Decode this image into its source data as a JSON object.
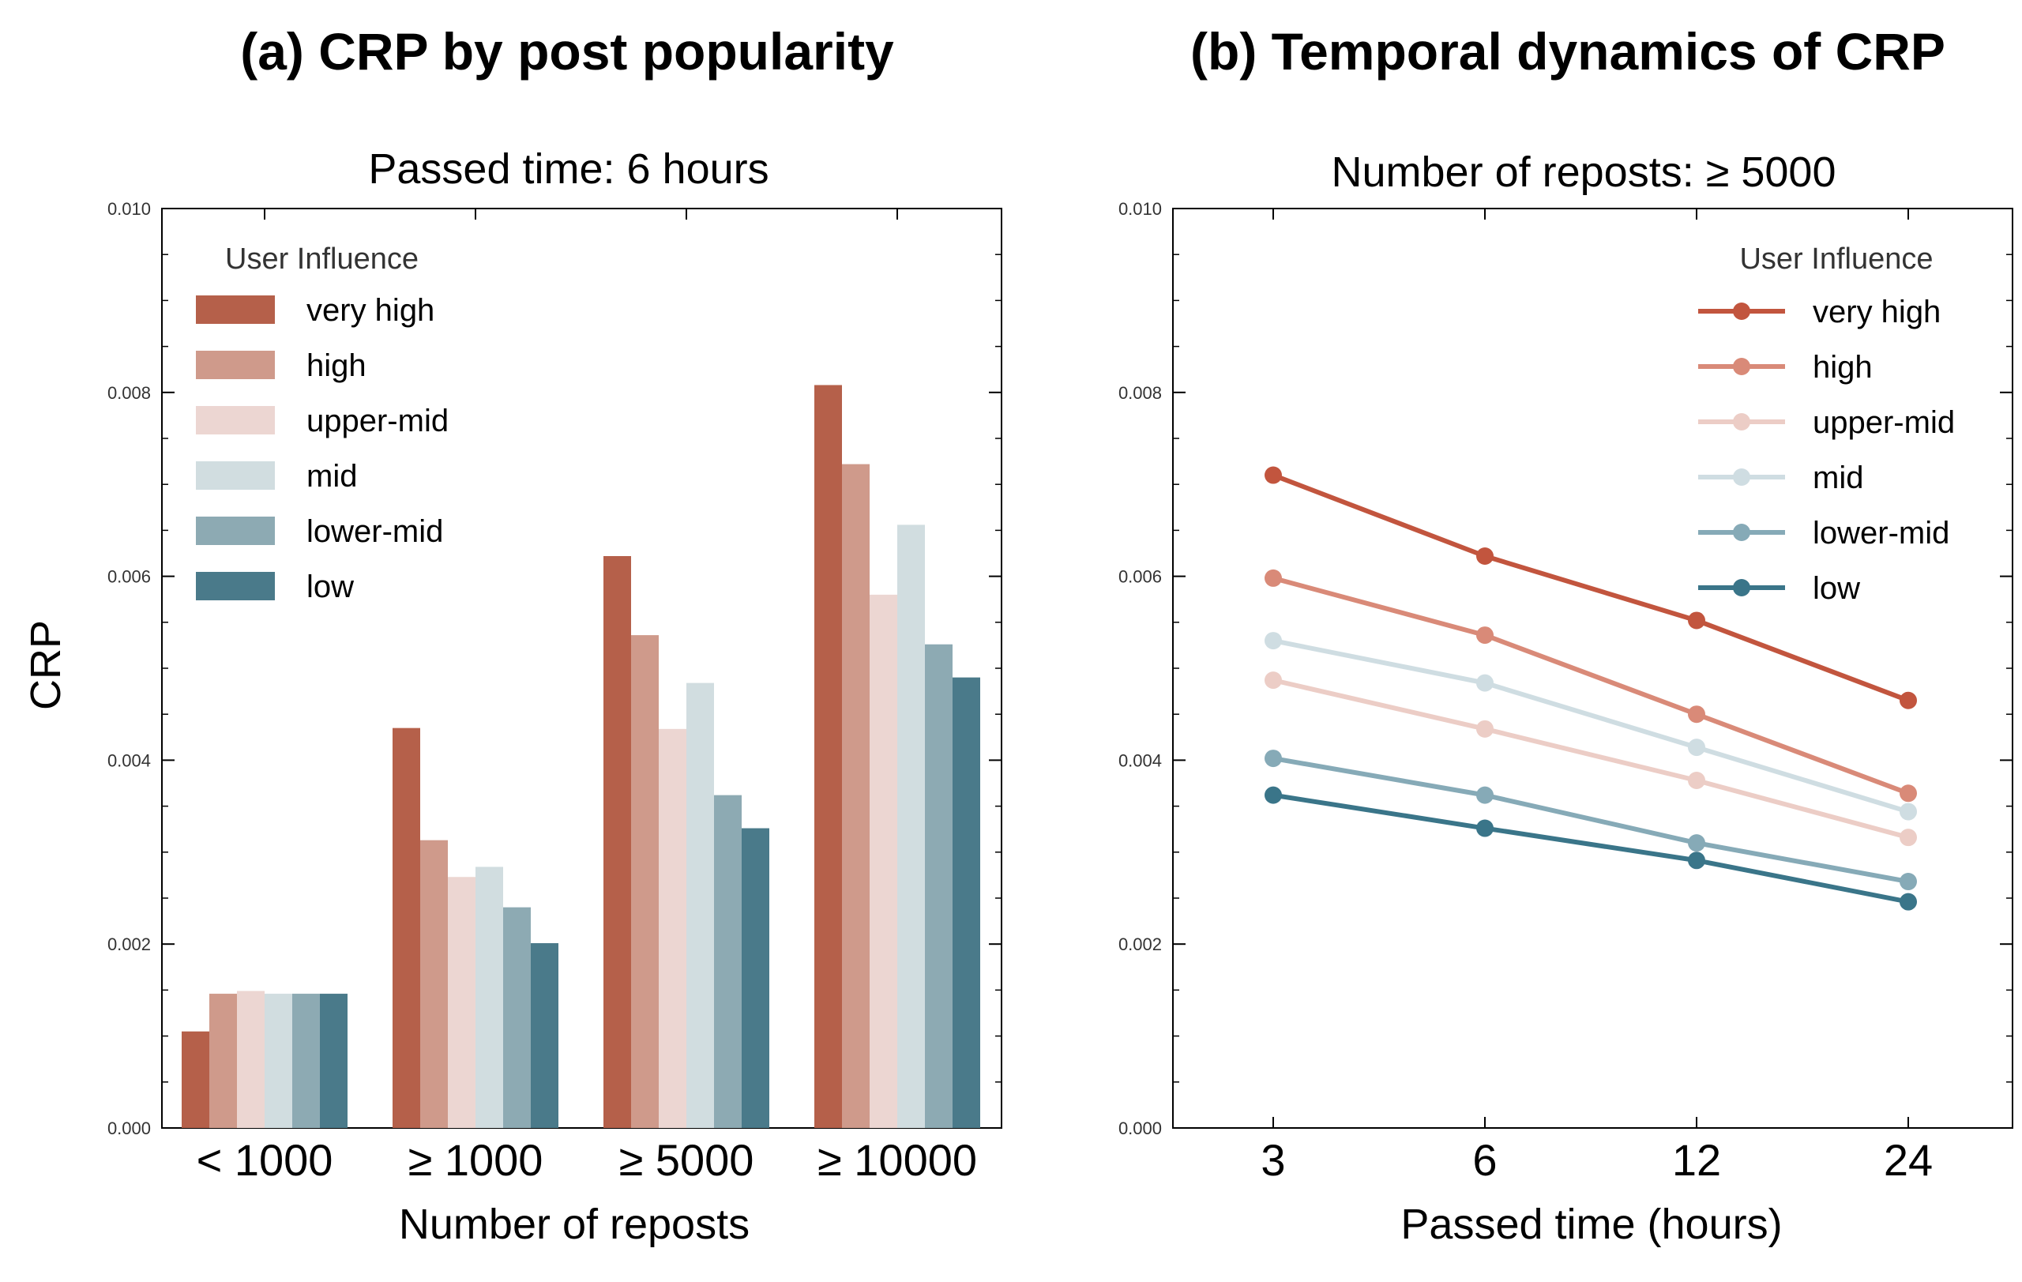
{
  "colors": {
    "very high": "#b5604a",
    "high": "#cf9a8b",
    "upper-mid": "#ecd6d2",
    "mid": "#d1dde0",
    "lower-mid": "#8daab3",
    "low": "#4a7a8a",
    "line_very high": "#c2553e",
    "line_high": "#d98a78",
    "line_upper-mid": "#eccdc6",
    "line_mid": "#cfdde2",
    "line_lower-mid": "#86aab7",
    "line_low": "#3a7589"
  },
  "chart_data": [
    {
      "type": "bar",
      "title": "(a) CRP by post popularity",
      "subtitle": "Passed time: 6 hours",
      "xlabel": "Number of reposts",
      "ylabel": "CRP",
      "ylim": [
        0,
        0.01
      ],
      "yticks": [
        "0.000",
        "0.002",
        "0.004",
        "0.006",
        "0.008",
        "0.010"
      ],
      "categories": [
        "< 1000",
        "≥ 1000",
        "≥ 5000",
        "≥ 10000"
      ],
      "legend_title": "User Influence",
      "legend_position": "top-left",
      "series": [
        {
          "name": "very high",
          "values": [
            0.00105,
            0.00435,
            0.00622,
            0.00808
          ]
        },
        {
          "name": "high",
          "values": [
            0.00146,
            0.00313,
            0.00536,
            0.00722
          ]
        },
        {
          "name": "upper-mid",
          "values": [
            0.00149,
            0.00273,
            0.00434,
            0.0058
          ]
        },
        {
          "name": "mid",
          "values": [
            0.00146,
            0.00284,
            0.00484,
            0.00656
          ]
        },
        {
          "name": "lower-mid",
          "values": [
            0.00146,
            0.0024,
            0.00362,
            0.00526
          ]
        },
        {
          "name": "low",
          "values": [
            0.00146,
            0.00201,
            0.00326,
            0.0049
          ]
        }
      ]
    },
    {
      "type": "line",
      "title": "(b) Temporal dynamics of CRP",
      "subtitle": "Number of reposts: ≥ 5000",
      "xlabel": "Passed time (hours)",
      "ylabel": "",
      "ylim": [
        0,
        0.01
      ],
      "yticks": [
        "0.000",
        "0.002",
        "0.004",
        "0.006",
        "0.008",
        "0.010"
      ],
      "x": [
        "3",
        "6",
        "12",
        "24"
      ],
      "legend_title": "User Influence",
      "legend_position": "top-right",
      "series": [
        {
          "name": "very high",
          "values": [
            0.0071,
            0.00622,
            0.00552,
            0.00465
          ]
        },
        {
          "name": "high",
          "values": [
            0.00598,
            0.00536,
            0.0045,
            0.00364
          ]
        },
        {
          "name": "upper-mid",
          "values": [
            0.00487,
            0.00434,
            0.00378,
            0.00316
          ]
        },
        {
          "name": "mid",
          "values": [
            0.0053,
            0.00484,
            0.00414,
            0.00344
          ]
        },
        {
          "name": "lower-mid",
          "values": [
            0.00402,
            0.00362,
            0.0031,
            0.00268
          ]
        },
        {
          "name": "low",
          "values": [
            0.00362,
            0.00326,
            0.00291,
            0.00246
          ]
        }
      ]
    }
  ]
}
